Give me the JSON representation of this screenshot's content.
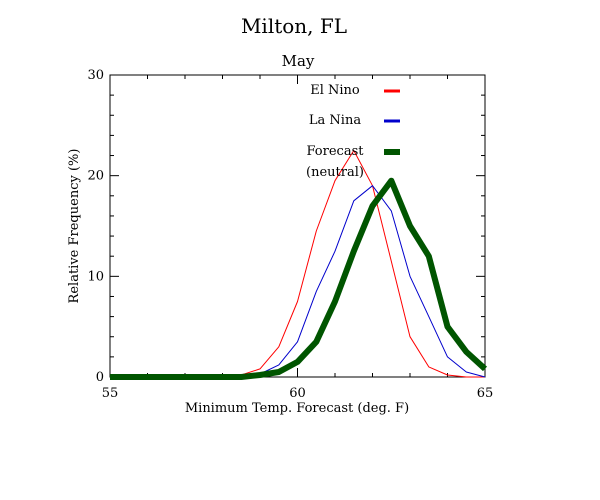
{
  "chart_data": {
    "type": "line",
    "title": "Milton, FL",
    "subtitle": "May",
    "xlabel": "Minimum Temp. Forecast (deg. F)",
    "ylabel": "Relative Frequency (%)",
    "xlim": [
      55,
      65
    ],
    "ylim": [
      0,
      30
    ],
    "xticks": [
      "55",
      "60",
      "65"
    ],
    "yticks": [
      "0",
      "10",
      "20",
      "30"
    ],
    "legend_position": "top-right",
    "series": [
      {
        "name": "El Nino",
        "color": "#ff0000",
        "x": [
          55,
          55.5,
          56,
          56.5,
          57,
          57.5,
          58,
          58.5,
          59,
          59.5,
          60,
          60.5,
          61,
          61.5,
          62,
          62.5,
          63,
          63.5,
          64,
          64.5,
          65
        ],
        "y": [
          0,
          0,
          0,
          0,
          0,
          0,
          0,
          0.2,
          0.8,
          3.0,
          7.5,
          14.5,
          19.5,
          22.5,
          19.0,
          11.5,
          4.0,
          1.0,
          0.2,
          0,
          0
        ]
      },
      {
        "name": "La Nina",
        "color": "#0000cc",
        "x": [
          55,
          55.5,
          56,
          56.5,
          57,
          57.5,
          58,
          58.5,
          59,
          59.5,
          60,
          60.5,
          61,
          61.5,
          62,
          62.5,
          63,
          63.5,
          64,
          64.5,
          65
        ],
        "y": [
          0,
          0,
          0,
          0,
          0,
          0,
          0,
          0,
          0.3,
          1.2,
          3.5,
          8.5,
          12.5,
          17.5,
          19.0,
          16.5,
          10.0,
          6.0,
          2.0,
          0.5,
          0
        ]
      },
      {
        "name": "Forecast\n(neutral)",
        "color": "#005500",
        "x": [
          55,
          55.5,
          56,
          56.5,
          57,
          57.5,
          58,
          58.5,
          59,
          59.5,
          60,
          60.5,
          61,
          61.5,
          62,
          62.5,
          63,
          63.5,
          64,
          64.5,
          65
        ],
        "y": [
          0,
          0,
          0,
          0,
          0,
          0,
          0,
          0,
          0.2,
          0.5,
          1.5,
          3.5,
          7.5,
          12.5,
          17.0,
          19.5,
          15.0,
          12.0,
          5.0,
          2.5,
          0.8
        ]
      }
    ]
  }
}
